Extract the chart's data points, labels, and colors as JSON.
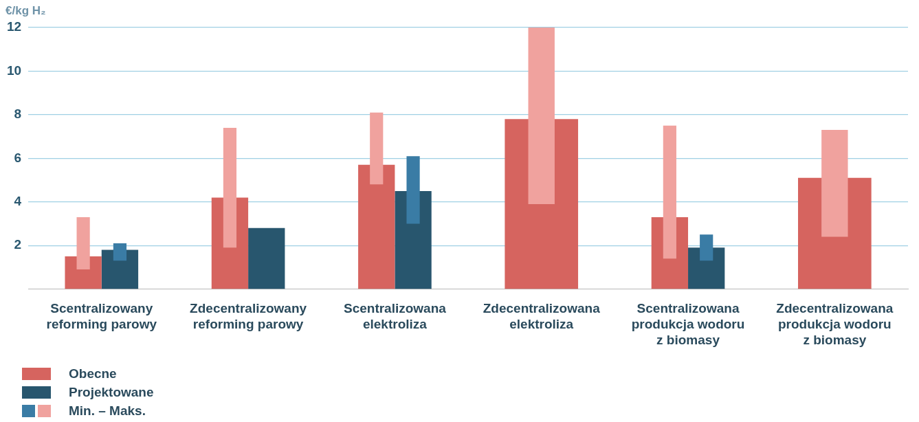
{
  "chart_data": {
    "type": "bar",
    "ylabel": "€/kg H₂",
    "categories": [
      "Scentralizowany reforming parowy",
      "Zdecentralizowany reforming parowy",
      "Scentralizowana elektroliza",
      "Zdecentralizowana elektroliza",
      "Scentralizowana produkcja wodoru z biomasy",
      "Zdecentralizowana produkcja wodoru z biomasy"
    ],
    "series": [
      {
        "name": "Obecne",
        "color": "#d6645f",
        "values": [
          1.5,
          4.2,
          5.7,
          7.8,
          3.3,
          5.1
        ]
      },
      {
        "name": "Projektowane",
        "color": "#28566e",
        "values": [
          1.8,
          2.8,
          4.5,
          null,
          1.9,
          null
        ]
      },
      {
        "name": "Min. – Maks.",
        "color": "#f0a29e",
        "base": [
          0.9,
          1.9,
          4.8,
          3.9,
          1.4,
          2.4
        ],
        "values": [
          2.4,
          5.5,
          3.3,
          8.1,
          6.1,
          4.9
        ]
      },
      {
        "color": "#3a7ca5",
        "base": [
          1.3,
          null,
          3.0,
          null,
          1.3,
          null
        ],
        "values": [
          0.8,
          null,
          3.1,
          null,
          1.2,
          null
        ]
      }
    ],
    "ylim": [
      0,
      12
    ],
    "yticks": [
      2,
      4,
      6,
      8,
      10,
      12
    ],
    "grid": "y",
    "legend": "bottom left"
  }
}
